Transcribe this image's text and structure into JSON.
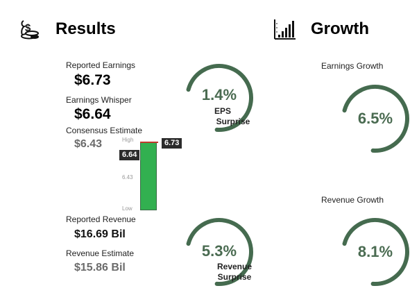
{
  "results": {
    "title": "Results",
    "icon": "money-bag-icon",
    "reported_earnings": {
      "label": "Reported Earnings",
      "value": "$6.73"
    },
    "earnings_whisper": {
      "label": "Earnings Whisper",
      "value": "$6.64"
    },
    "consensus_estimate": {
      "label": "Consensus Estimate",
      "value": "$6.43"
    },
    "eps_surprise": {
      "value": "1.4%",
      "label_line1": "EPS",
      "label_line2": "Surprise",
      "fraction": 0.72
    },
    "reported_revenue": {
      "label": "Reported Revenue",
      "value": "$16.69 Bil"
    },
    "revenue_estimate": {
      "label": "Revenue Estimate",
      "value": "$15.86 Bil"
    },
    "revenue_surprise": {
      "value": "5.3%",
      "label_line1": "Revenue",
      "label_line2": "Surprise",
      "fraction": 0.72
    },
    "range_chart": {
      "high_label": "High",
      "low_label": "Low",
      "mid_tick": "6.43",
      "high": 6.73,
      "low": 6.43,
      "reported": "6.73",
      "whisper": "6.64",
      "bar_color": "#32b050",
      "line_color": "#c0392b"
    }
  },
  "growth": {
    "title": "Growth",
    "icon": "bar-chart-icon",
    "earnings_growth": {
      "label": "Earnings Growth",
      "value": "6.5%",
      "fraction": 0.72
    },
    "revenue_growth": {
      "label": "Revenue Growth",
      "value": "8.1%",
      "fraction": 0.72
    }
  },
  "colors": {
    "ring": "#456b4f",
    "ring_text": "#4a6b51"
  }
}
